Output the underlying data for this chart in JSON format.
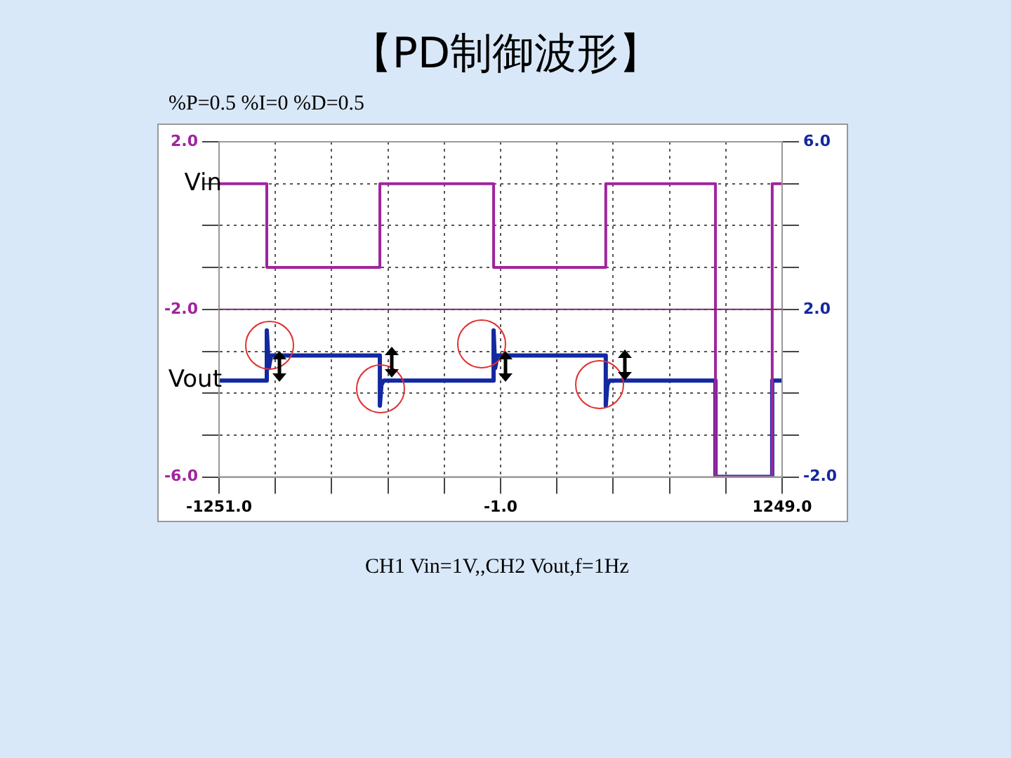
{
  "chart_data": {
    "type": "line",
    "title": "【PD制御波形】",
    "subtitle": "%P=0.5 %I=0 %D=0.5",
    "annotations": [
      "CH1  Vin=1V,,CH2 Vout,f=1Hz"
    ],
    "series": [
      {
        "name": "Vin",
        "color": "#a0249e",
        "axis": "y",
        "x": [
          -1251,
          -1039,
          -1039,
          -537,
          -537,
          -32,
          -32,
          466,
          466,
          953,
          953,
          1205,
          1205,
          1249
        ],
        "values": [
          1,
          1,
          -1,
          -1,
          1,
          1,
          -1,
          -1,
          1,
          1,
          -6,
          -6,
          1,
          1
        ]
      },
      {
        "name": "Vout",
        "color": "#1428a0",
        "axis": "y2",
        "x": [
          -1251,
          -1039,
          -1039,
          -1030,
          -1020,
          -537,
          -537,
          -530,
          -520,
          -32,
          -32,
          -25,
          -15,
          466,
          466,
          473,
          483,
          953,
          953,
          1205,
          1205,
          1249
        ],
        "values": [
          0.3,
          0.3,
          1.5,
          0.6,
          0.9,
          0.9,
          -0.3,
          0.2,
          0.3,
          0.3,
          1.5,
          0.6,
          0.9,
          0.9,
          -0.3,
          0.2,
          0.3,
          0.3,
          -2,
          -2,
          0.3,
          0.3
        ]
      }
    ],
    "xlim": [
      -1251,
      1249
    ],
    "xticks": [
      {
        "value": -1251,
        "label": "-1251.0"
      },
      {
        "value": -1001,
        "label": null
      },
      {
        "value": -751,
        "label": null
      },
      {
        "value": -501,
        "label": null
      },
      {
        "value": -251,
        "label": null
      },
      {
        "value": -1,
        "label": "-1.0"
      },
      {
        "value": 249,
        "label": null
      },
      {
        "value": 499,
        "label": null
      },
      {
        "value": 749,
        "label": null
      },
      {
        "value": 999,
        "label": null
      },
      {
        "value": 1249,
        "label": "1249.0"
      }
    ],
    "ylim": [
      -6,
      2
    ],
    "yticks": [
      {
        "value": -6,
        "label": "-6.0"
      },
      {
        "value": -5,
        "label": null
      },
      {
        "value": -4,
        "label": null
      },
      {
        "value": -3,
        "label": null
      },
      {
        "value": -2,
        "label": "-2.0"
      },
      {
        "value": -1,
        "label": null
      },
      {
        "value": 0,
        "label": null
      },
      {
        "value": 1,
        "label": null
      },
      {
        "value": 2,
        "label": "2.0"
      }
    ],
    "y2lim": [
      -2,
      6
    ],
    "y2ticks": [
      {
        "value": -2,
        "label": "-2.0"
      },
      {
        "value": -1,
        "label": null
      },
      {
        "value": 0,
        "label": null
      },
      {
        "value": 1,
        "label": null
      },
      {
        "value": 2,
        "label": "2.0"
      },
      {
        "value": 3,
        "label": null
      },
      {
        "value": 4,
        "label": null
      },
      {
        "value": 5,
        "label": null
      },
      {
        "value": 6,
        "label": "6.0"
      }
    ],
    "ref_lines": [
      {
        "axis": "y",
        "value": -2,
        "color": "#7a2a6e"
      }
    ],
    "grid": true,
    "legend": false,
    "marker": "none",
    "line_style": "solid"
  }
}
